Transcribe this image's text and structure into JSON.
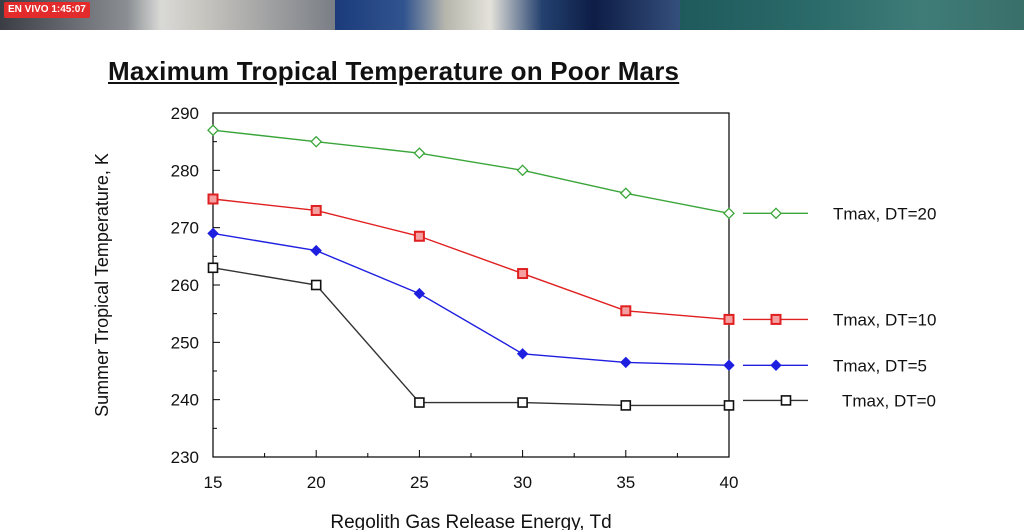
{
  "video_bar": {
    "live_label": "EN VIVO 1:45:07"
  },
  "chart_data": {
    "type": "line",
    "title": "Maximum Tropical Temperature on Poor Mars",
    "xlabel": "Regolith Gas Release Energy, Td",
    "ylabel": "Summer Tropical Temperature, K",
    "xlim": [
      15,
      40
    ],
    "ylim": [
      230,
      290
    ],
    "xticks": [
      15,
      20,
      25,
      30,
      35,
      40
    ],
    "yticks": [
      230,
      240,
      250,
      260,
      270,
      280,
      290
    ],
    "grid": false,
    "legend_position": "right",
    "x": [
      15,
      20,
      25,
      30,
      35,
      40
    ],
    "series": [
      {
        "name": "Tmax, DT=20",
        "values": [
          287,
          285,
          283,
          280,
          276,
          272.5
        ],
        "color": "#3aa63a",
        "marker": "diamond-open"
      },
      {
        "name": "Tmax, DT=10",
        "values": [
          275,
          273,
          268.5,
          262,
          255.5,
          254
        ],
        "color": "#e02020",
        "marker": "square-red"
      },
      {
        "name": "Tmax, DT=5",
        "values": [
          269,
          266,
          258.5,
          248,
          246.5,
          246
        ],
        "color": "#1f1fe0",
        "marker": "diamond-filled"
      },
      {
        "name": "Tmax, DT=0",
        "values": [
          263,
          260,
          239.5,
          239.5,
          239,
          239
        ],
        "color": "#333333",
        "marker": "square-open"
      }
    ]
  }
}
